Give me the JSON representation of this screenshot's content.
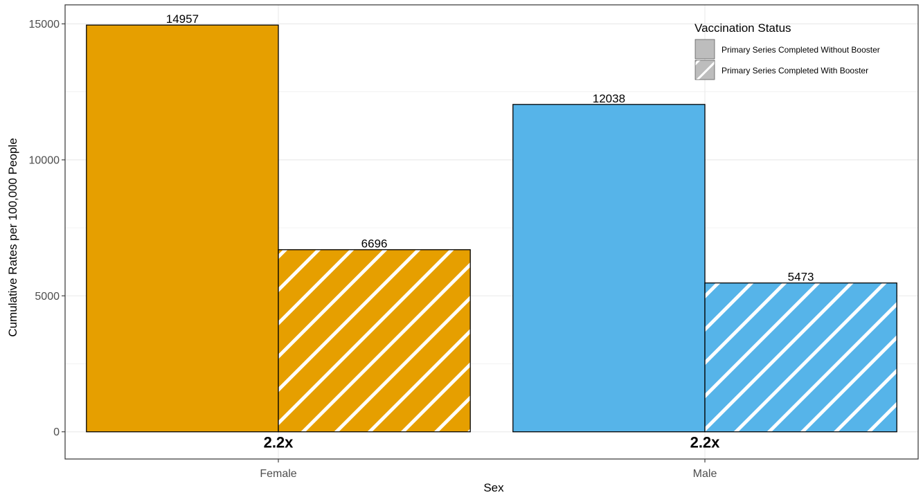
{
  "chart_data": {
    "type": "bar",
    "categories": [
      "Female",
      "Male"
    ],
    "series": [
      {
        "name": "Primary Series Completed Without Booster",
        "values": [
          14957,
          12038
        ],
        "pattern": "solid"
      },
      {
        "name": "Primary Series Completed With Booster",
        "values": [
          6696,
          5473
        ],
        "pattern": "hatched"
      }
    ],
    "category_colors": [
      "#E69F00",
      "#56B4E9"
    ],
    "ratio_labels": [
      "2.2x",
      "2.2x"
    ],
    "xlabel": "Sex",
    "ylabel": "Cumulative Rates per 100,000 People",
    "ylim": [
      -1000,
      15700
    ],
    "yticks": [
      0,
      5000,
      10000,
      15000
    ],
    "grid": true,
    "legend": {
      "title": "Vaccination Status",
      "placement": "top-right",
      "swatch_color": "#BDBDBD"
    }
  }
}
